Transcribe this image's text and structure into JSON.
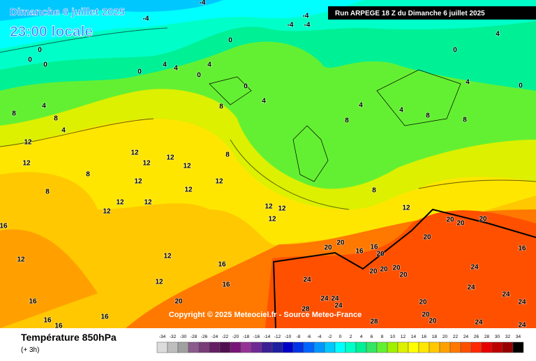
{
  "header": {
    "title": "Dimanche 6 juillet 2025",
    "time": "23:00 locale",
    "run": "Run ARPEGE 18 Z du Dimanche 6 juillet 2025"
  },
  "map": {
    "copyright": "Copyright © 2025 Meteociel.fr - Source Meteo-France",
    "labels": [
      -4,
      -4,
      -4,
      -4,
      -4,
      0,
      0,
      0,
      0,
      0,
      0,
      0,
      0,
      0,
      4,
      4,
      4,
      4,
      4,
      4,
      4,
      4,
      4,
      4,
      8,
      8,
      8,
      8,
      8,
      8,
      8,
      8,
      8,
      8,
      12,
      12,
      12,
      12,
      12,
      12,
      12,
      12,
      12,
      12,
      12,
      12,
      12,
      12,
      12,
      12,
      12,
      12,
      12,
      16,
      16,
      16,
      16,
      16,
      16,
      16,
      16,
      16,
      16,
      20,
      20,
      20,
      20,
      20,
      20,
      20,
      20,
      20,
      20,
      20,
      20,
      20,
      20,
      20,
      24,
      24,
      24,
      24,
      24,
      24,
      24,
      24,
      24,
      24,
      28,
      28
    ]
  },
  "footer": {
    "title": "Température 850hPa",
    "step": "(+ 3h)",
    "scale_labels": [
      -34,
      -32,
      -30,
      -28,
      -26,
      -24,
      -22,
      -20,
      -18,
      -16,
      -14,
      -12,
      -10,
      -8,
      -6,
      -4,
      -2,
      0,
      2,
      4,
      6,
      8,
      10,
      12,
      14,
      16,
      18,
      20,
      22,
      24,
      26,
      28,
      30,
      32,
      34
    ],
    "scale_colors": [
      "#dcdcdc",
      "#bebebe",
      "#a0a0a0",
      "#8c5a8c",
      "#783c78",
      "#641e64",
      "#501050",
      "#781478",
      "#963296",
      "#6e2896",
      "#3c1e96",
      "#1e1ea0",
      "#0000c8",
      "#0032e6",
      "#0064ff",
      "#0096ff",
      "#00c8ff",
      "#00ffff",
      "#00ffc8",
      "#00f096",
      "#32e664",
      "#64f032",
      "#a0f000",
      "#dcf000",
      "#ffff00",
      "#ffe600",
      "#ffc800",
      "#ffa000",
      "#ff7800",
      "#ff5000",
      "#ff2800",
      "#e60000",
      "#be0000",
      "#960000",
      "#000000"
    ]
  }
}
